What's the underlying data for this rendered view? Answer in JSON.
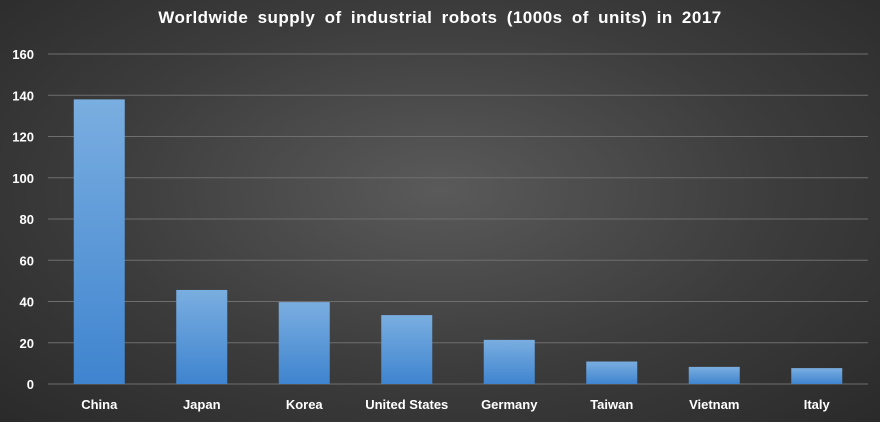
{
  "chart_data": {
    "type": "bar",
    "title": "Worldwide supply of industrial robots (1000s of units) in 2017",
    "categories": [
      "China",
      "Japan",
      "Korea",
      "United States",
      "Germany",
      "Taiwan",
      "Vietnam",
      "Italy"
    ],
    "values": [
      138,
      45.6,
      39.7,
      33.4,
      21.4,
      10.9,
      8.3,
      7.7
    ],
    "ylim": [
      0,
      160
    ],
    "yticks": [
      0,
      20,
      40,
      60,
      80,
      100,
      120,
      140,
      160
    ],
    "grid": true,
    "xlabel": "",
    "ylabel": "",
    "colors": {
      "bar_top": "#7aaee0",
      "bar_bottom": "#3f84cf",
      "text": "#ffffff"
    }
  }
}
